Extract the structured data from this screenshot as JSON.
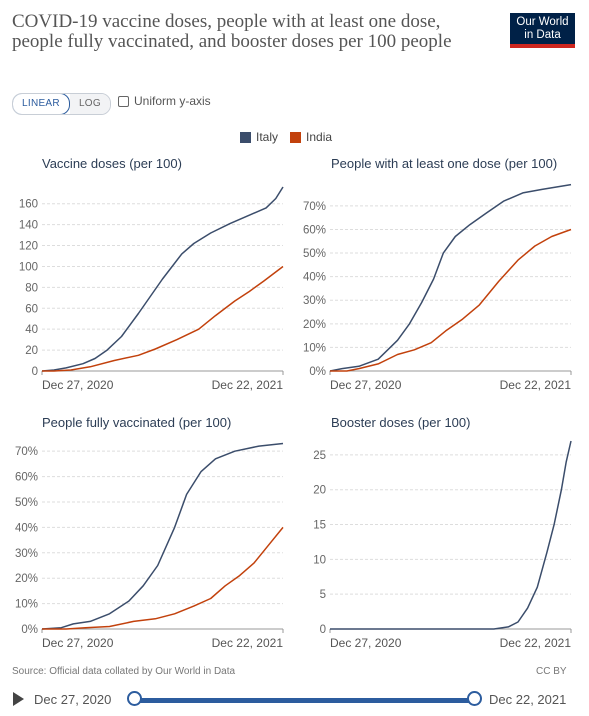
{
  "header": {
    "title": "COVID-19 vaccine doses, people with at least one dose, people fully vaccinated, and booster doses per 100 people",
    "logo_line1": "Our World",
    "logo_line2": "in Data"
  },
  "controls": {
    "linear_label": "LINEAR",
    "log_label": "LOG",
    "uniform_label": "Uniform y-axis"
  },
  "footer": {
    "source": "Source: Official data collated by Our World in Data",
    "license": "CC BY"
  },
  "timeline": {
    "start": "Dec 27, 2020",
    "end": "Dec 22, 2021",
    "start_fraction": 0.0,
    "end_fraction": 1.0
  },
  "colors": {
    "italy": "#3b4d6b",
    "india": "#c2410c",
    "accent": "#2c5c9e"
  },
  "chart_data": [
    {
      "type": "line",
      "title": "Vaccine doses (per 100)",
      "x_range": [
        "Dec 27, 2020",
        "Dec 22, 2021"
      ],
      "x_tick_labels": [
        "Dec 27, 2020",
        "Dec 22, 2021"
      ],
      "ylim": [
        0,
        176
      ],
      "y_ticks": [
        0,
        20,
        40,
        60,
        80,
        100,
        120,
        140,
        160
      ],
      "y_tick_labels": [
        "0",
        "20",
        "40",
        "60",
        "80",
        "100",
        "120",
        "140",
        "160"
      ],
      "legend": "top",
      "grid": true,
      "series": [
        {
          "name": "Italy",
          "points": [
            [
              0,
              0
            ],
            [
              0.05,
              1
            ],
            [
              0.1,
              3
            ],
            [
              0.17,
              7
            ],
            [
              0.22,
              12
            ],
            [
              0.27,
              20
            ],
            [
              0.33,
              33
            ],
            [
              0.4,
              55
            ],
            [
              0.5,
              88
            ],
            [
              0.58,
              112
            ],
            [
              0.63,
              122
            ],
            [
              0.7,
              132
            ],
            [
              0.78,
              141
            ],
            [
              0.86,
              149
            ],
            [
              0.93,
              156
            ],
            [
              0.97,
              165
            ],
            [
              1.0,
              176
            ]
          ]
        },
        {
          "name": "India",
          "points": [
            [
              0,
              0
            ],
            [
              0.05,
              0
            ],
            [
              0.12,
              1
            ],
            [
              0.2,
              4
            ],
            [
              0.3,
              10
            ],
            [
              0.4,
              15
            ],
            [
              0.47,
              21
            ],
            [
              0.56,
              30
            ],
            [
              0.65,
              40
            ],
            [
              0.72,
              53
            ],
            [
              0.8,
              67
            ],
            [
              0.86,
              76
            ],
            [
              0.92,
              86
            ],
            [
              1.0,
              100
            ]
          ]
        }
      ]
    },
    {
      "type": "line",
      "title": "People with at least one dose (per 100)",
      "x_range": [
        "Dec 27, 2020",
        "Dec 22, 2021"
      ],
      "x_tick_labels": [
        "Dec 27, 2020",
        "Dec 22, 2021"
      ],
      "ylim": [
        0,
        78
      ],
      "y_ticks": [
        0,
        10,
        20,
        30,
        40,
        50,
        60,
        70
      ],
      "y_tick_labels": [
        "0%",
        "10%",
        "20%",
        "30%",
        "40%",
        "50%",
        "60%",
        "70%"
      ],
      "legend": "top",
      "grid": true,
      "series": [
        {
          "name": "Italy",
          "points": [
            [
              0,
              0
            ],
            [
              0.05,
              1
            ],
            [
              0.12,
              2
            ],
            [
              0.2,
              5
            ],
            [
              0.28,
              13
            ],
            [
              0.33,
              20
            ],
            [
              0.38,
              29
            ],
            [
              0.43,
              39
            ],
            [
              0.47,
              50
            ],
            [
              0.52,
              57
            ],
            [
              0.58,
              62
            ],
            [
              0.65,
              67
            ],
            [
              0.72,
              72
            ],
            [
              0.8,
              75.5
            ],
            [
              0.88,
              77
            ],
            [
              0.94,
              78
            ],
            [
              1.0,
              79
            ]
          ]
        },
        {
          "name": "India",
          "points": [
            [
              0,
              0
            ],
            [
              0.07,
              0
            ],
            [
              0.12,
              1
            ],
            [
              0.2,
              3
            ],
            [
              0.28,
              7
            ],
            [
              0.35,
              9
            ],
            [
              0.42,
              12
            ],
            [
              0.48,
              17
            ],
            [
              0.55,
              22
            ],
            [
              0.62,
              28
            ],
            [
              0.7,
              38
            ],
            [
              0.78,
              47
            ],
            [
              0.85,
              53
            ],
            [
              0.92,
              57
            ],
            [
              1.0,
              60
            ]
          ]
        }
      ]
    },
    {
      "type": "line",
      "title": "People fully vaccinated (per 100)",
      "x_range": [
        "Dec 27, 2020",
        "Dec 22, 2021"
      ],
      "x_tick_labels": [
        "Dec 27, 2020",
        "Dec 22, 2021"
      ],
      "ylim": [
        0,
        74
      ],
      "y_ticks": [
        0,
        10,
        20,
        30,
        40,
        50,
        60,
        70
      ],
      "y_tick_labels": [
        "0%",
        "10%",
        "20%",
        "30%",
        "40%",
        "50%",
        "60%",
        "70%"
      ],
      "legend": "top",
      "grid": true,
      "series": [
        {
          "name": "Italy",
          "points": [
            [
              0,
              0
            ],
            [
              0.08,
              0.5
            ],
            [
              0.13,
              2
            ],
            [
              0.2,
              3
            ],
            [
              0.28,
              6
            ],
            [
              0.36,
              11
            ],
            [
              0.42,
              17
            ],
            [
              0.48,
              25
            ],
            [
              0.55,
              40
            ],
            [
              0.6,
              53
            ],
            [
              0.66,
              62
            ],
            [
              0.72,
              67
            ],
            [
              0.8,
              70
            ],
            [
              0.9,
              72
            ],
            [
              1.0,
              73
            ]
          ]
        },
        {
          "name": "India",
          "points": [
            [
              0,
              0
            ],
            [
              0.1,
              0
            ],
            [
              0.18,
              0.5
            ],
            [
              0.28,
              1
            ],
            [
              0.38,
              3
            ],
            [
              0.47,
              4
            ],
            [
              0.55,
              6
            ],
            [
              0.63,
              9
            ],
            [
              0.7,
              12
            ],
            [
              0.76,
              17
            ],
            [
              0.82,
              21
            ],
            [
              0.88,
              26
            ],
            [
              0.94,
              33
            ],
            [
              1.0,
              40
            ]
          ]
        }
      ]
    },
    {
      "type": "line",
      "title": "Booster doses (per 100)",
      "x_range": [
        "Dec 27, 2020",
        "Dec 22, 2021"
      ],
      "x_tick_labels": [
        "Dec 27, 2020",
        "Dec 22, 2021"
      ],
      "ylim": [
        0,
        27
      ],
      "y_ticks": [
        0,
        5,
        10,
        15,
        20,
        25
      ],
      "y_tick_labels": [
        "0",
        "5",
        "10",
        "15",
        "20",
        "25"
      ],
      "legend": "top",
      "grid": true,
      "series": [
        {
          "name": "Italy",
          "points": [
            [
              0,
              0
            ],
            [
              0.68,
              0
            ],
            [
              0.74,
              0.3
            ],
            [
              0.78,
              1
            ],
            [
              0.82,
              3
            ],
            [
              0.86,
              6
            ],
            [
              0.9,
              11
            ],
            [
              0.93,
              15
            ],
            [
              0.96,
              20
            ],
            [
              0.98,
              24
            ],
            [
              1.0,
              27
            ]
          ]
        }
      ]
    }
  ]
}
